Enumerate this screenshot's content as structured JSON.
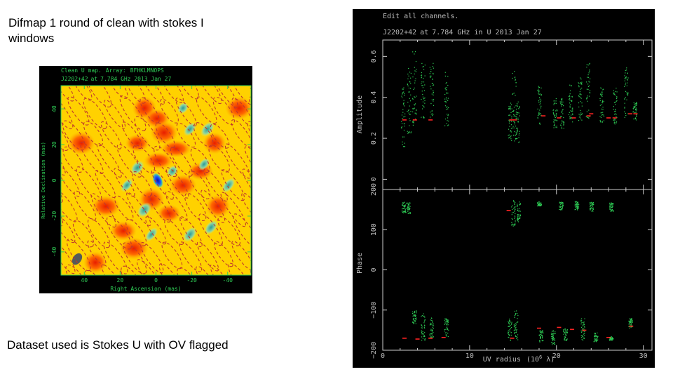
{
  "slide": {
    "title": "Difmap 1 round of clean with stokes I windows",
    "caption": "Dataset used is Stokes U with OV flagged"
  },
  "map_plot": {
    "header_line1_a": "Clean U map.",
    "header_line1_b": "Array:",
    "header_line1_c": "BFHKLMNOPS",
    "header_line2_a": "J2202+42",
    "header_line2_b": "at",
    "header_line2_c": "7.784 GHz 2013 Jan 27",
    "ylabel": "Relative Declination (mas)",
    "xlabel": "Right Ascension  (mas)",
    "yticks": [
      "40",
      "20",
      "0",
      "-20",
      "-40"
    ],
    "xticks": [
      "40",
      "20",
      "0",
      "-20",
      "-40"
    ],
    "colors": {
      "hot": "#ff2a00",
      "mid": "#ffd100",
      "cold": "#1a4dff",
      "frame": "#2ecc55"
    }
  },
  "uv_plot": {
    "header1": "Edit all channels.",
    "header2_a": "J2202+42",
    "header2_b": "at",
    "header2_c": "7.784 GHz in U  2013 Jan 27",
    "amp_ylabel": "Amplitude",
    "phase_ylabel": "Phase",
    "xlabel_pre": "UV radius",
    "xlabel_unit": "(10",
    "xlabel_exp": "6",
    "xlabel_post": " λ)",
    "amp_yticks": [
      "0.6",
      "0.4",
      "0.2",
      "0"
    ],
    "phase_yticks": [
      "200",
      "100",
      "0",
      "−100",
      "−200"
    ],
    "xticks": [
      "0",
      "10",
      "20",
      "30"
    ],
    "colors": {
      "data": "#2ecc55",
      "model": "#ff2222",
      "text": "#bbbbbb"
    }
  },
  "chart_data": [
    {
      "type": "heatmap",
      "title": "Clean U map.  Array: BFHKLMNOPS",
      "subtitle": "J2202+42 at 7.784 GHz 2013 Jan 27",
      "xlabel": "Right Ascension  (mas)",
      "ylabel": "Relative Declination (mas)",
      "xlim": [
        53,
        -53
      ],
      "ylim": [
        -53,
        53
      ],
      "features": [
        {
          "kind": "minimum",
          "x": -1,
          "y": 0
        },
        {
          "kind": "beam",
          "x": 44,
          "y": -44
        }
      ]
    },
    {
      "type": "scatter",
      "title": "Edit all channels.",
      "subtitle": "J2202+42 at 7.784 GHz in U  2013 Jan 27",
      "xlabel": "UV radius  (10^6 λ)",
      "xlim": [
        0,
        31
      ],
      "panels": [
        {
          "ylabel": "Amplitude",
          "ylim": [
            -0.05,
            0.68
          ],
          "clusters": [
            {
              "x": 2.3,
              "ymin": 0.15,
              "ymax": 0.48
            },
            {
              "x": 3.0,
              "ymin": 0.2,
              "ymax": 0.55
            },
            {
              "x": 3.6,
              "ymin": 0.25,
              "ymax": 0.64
            },
            {
              "x": 4.6,
              "ymin": 0.3,
              "ymax": 0.57
            },
            {
              "x": 5.6,
              "ymin": 0.3,
              "ymax": 0.57
            },
            {
              "x": 7.3,
              "ymin": 0.26,
              "ymax": 0.53
            },
            {
              "x": 14.6,
              "ymin": 0.18,
              "ymax": 0.38
            },
            {
              "x": 15.1,
              "ymin": 0.18,
              "ymax": 0.55
            },
            {
              "x": 15.5,
              "ymin": 0.18,
              "ymax": 0.38
            },
            {
              "x": 18.0,
              "ymin": 0.27,
              "ymax": 0.46
            },
            {
              "x": 19.8,
              "ymin": 0.25,
              "ymax": 0.4
            },
            {
              "x": 20.6,
              "ymin": 0.25,
              "ymax": 0.4
            },
            {
              "x": 21.6,
              "ymin": 0.28,
              "ymax": 0.47
            },
            {
              "x": 22.7,
              "ymin": 0.28,
              "ymax": 0.5
            },
            {
              "x": 23.6,
              "ymin": 0.3,
              "ymax": 0.57
            },
            {
              "x": 25.2,
              "ymin": 0.28,
              "ymax": 0.45
            },
            {
              "x": 26.7,
              "ymin": 0.27,
              "ymax": 0.45
            },
            {
              "x": 28.0,
              "ymin": 0.3,
              "ymax": 0.55
            },
            {
              "x": 29.0,
              "ymin": 0.29,
              "ymax": 0.38
            }
          ],
          "model": [
            {
              "x": 2.5,
              "y": 0.29
            },
            {
              "x": 3.7,
              "y": 0.29
            },
            {
              "x": 5.5,
              "y": 0.29
            },
            {
              "x": 14.8,
              "y": 0.29
            },
            {
              "x": 15.2,
              "y": 0.29
            },
            {
              "x": 18.5,
              "y": 0.31
            },
            {
              "x": 20.3,
              "y": 0.3
            },
            {
              "x": 22.0,
              "y": 0.3
            },
            {
              "x": 23.7,
              "y": 0.31
            },
            {
              "x": 24.0,
              "y": 0.32
            },
            {
              "x": 26.0,
              "y": 0.3
            },
            {
              "x": 26.7,
              "y": 0.3
            },
            {
              "x": 28.5,
              "y": 0.32
            },
            {
              "x": 29.1,
              "y": 0.32
            }
          ]
        },
        {
          "ylabel": "Phase",
          "ylim": [
            -200,
            200
          ],
          "clusters": [
            {
              "x": 2.4,
              "ymin": 143,
              "ymax": 170
            },
            {
              "x": 2.9,
              "ymin": 140,
              "ymax": 168
            },
            {
              "x": 15.0,
              "ymin": 110,
              "ymax": 175
            },
            {
              "x": 15.6,
              "ymin": 120,
              "ymax": 170
            },
            {
              "x": 18.0,
              "ymin": 160,
              "ymax": 170
            },
            {
              "x": 20.5,
              "ymin": 150,
              "ymax": 170
            },
            {
              "x": 22.3,
              "ymin": 150,
              "ymax": 172
            },
            {
              "x": 24.0,
              "ymin": 145,
              "ymax": 170
            },
            {
              "x": 26.3,
              "ymin": 145,
              "ymax": 168
            },
            {
              "x": 3.6,
              "ymin": -135,
              "ymax": -100
            },
            {
              "x": 4.6,
              "ymin": -175,
              "ymax": -108
            },
            {
              "x": 5.6,
              "ymin": -170,
              "ymax": -118
            },
            {
              "x": 7.3,
              "ymin": -165,
              "ymax": -120
            },
            {
              "x": 14.6,
              "ymin": -178,
              "ymax": -120
            },
            {
              "x": 15.3,
              "ymin": -175,
              "ymax": -95
            },
            {
              "x": 18.2,
              "ymin": -180,
              "ymax": -150
            },
            {
              "x": 19.6,
              "ymin": -185,
              "ymax": -150
            },
            {
              "x": 21.0,
              "ymin": -178,
              "ymax": -145
            },
            {
              "x": 23.0,
              "ymin": -175,
              "ymax": -120
            },
            {
              "x": 24.5,
              "ymin": -178,
              "ymax": -155
            },
            {
              "x": 26.3,
              "ymin": -175,
              "ymax": -165
            },
            {
              "x": 28.5,
              "ymin": -145,
              "ymax": -120
            }
          ],
          "model": [
            {
              "x": 2.5,
              "y": -170
            },
            {
              "x": 4.0,
              "y": -172
            },
            {
              "x": 5.5,
              "y": -170
            },
            {
              "x": 7.0,
              "y": -168
            },
            {
              "x": 14.5,
              "y": 148
            },
            {
              "x": 14.9,
              "y": -170
            },
            {
              "x": 18.0,
              "y": -145
            },
            {
              "x": 20.3,
              "y": -143
            },
            {
              "x": 21.8,
              "y": -148
            },
            {
              "x": 23.2,
              "y": -150
            },
            {
              "x": 26.0,
              "y": -168
            },
            {
              "x": 28.6,
              "y": -140
            }
          ]
        }
      ]
    }
  ]
}
